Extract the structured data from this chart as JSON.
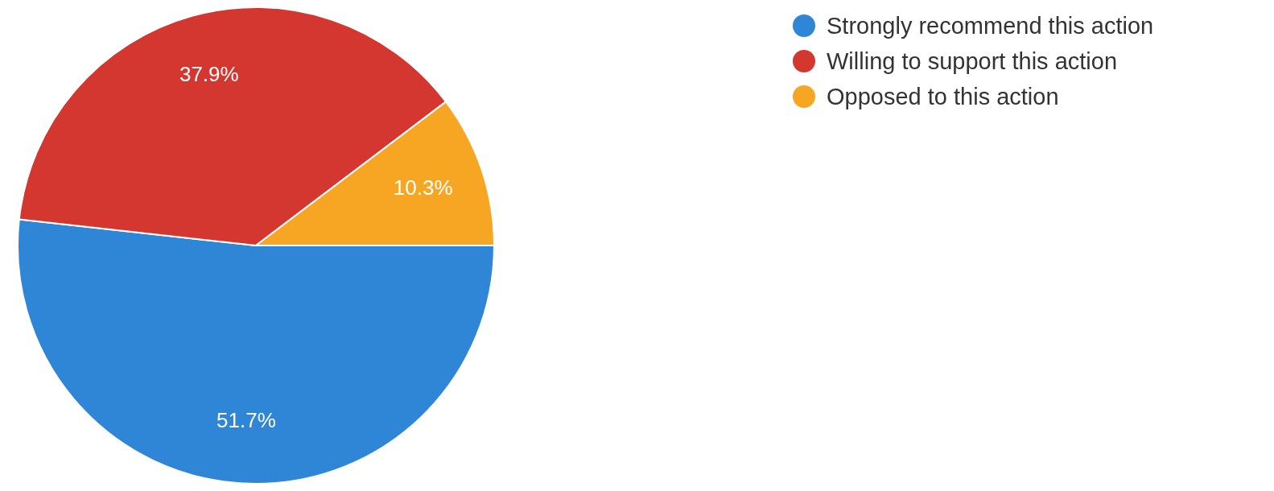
{
  "chart_data": {
    "type": "pie",
    "categories": [
      "Strongly recommend this action",
      "Willing to support this action",
      "Opposed to this action"
    ],
    "values": [
      51.7,
      37.9,
      10.3
    ],
    "colors": [
      "#2f86d6",
      "#d3372f",
      "#f6a623"
    ],
    "value_labels": [
      "51.7%",
      "37.9%",
      "10.3%"
    ],
    "legend": "right"
  }
}
